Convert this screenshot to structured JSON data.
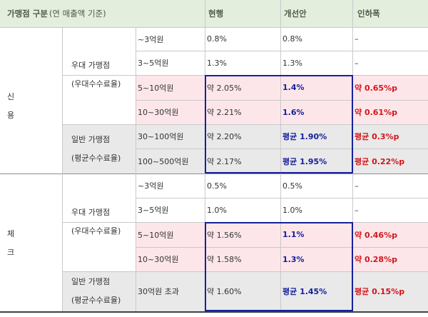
{
  "header": {
    "col_category_main": "가맹점 구분",
    "col_category_note": "(연 매출액 기준)",
    "col_current": "현행",
    "col_improved": "개선안",
    "col_reduction": "인하폭"
  },
  "credit": {
    "label_top": "신",
    "label_bottom": "용",
    "preferred_group": {
      "line1": "우대 가맹점",
      "line2": "(우대수수료율)"
    },
    "general_group": {
      "line1": "일반 가맹점",
      "line2": "(평균수수료율)"
    },
    "rows": [
      {
        "range": "~3억원",
        "current": "0.8%",
        "improved": "0.8%",
        "reduction": "–"
      },
      {
        "range": "3~5억원",
        "current": "1.3%",
        "improved": "1.3%",
        "reduction": "–"
      },
      {
        "range": "5~10억원",
        "current": "약 2.05%",
        "improved": "1.4%",
        "reduction": "약 0.65%p"
      },
      {
        "range": "10~30억원",
        "current": "약 2.21%",
        "improved": "1.6%",
        "reduction": "약 0.61%p"
      },
      {
        "range": "30~100억원",
        "current": "약 2.20%",
        "improved": "평균 1.90%",
        "reduction": "평균 0.3%p"
      },
      {
        "range": "100~500억원",
        "current": "약 2.17%",
        "improved": "평균 1.95%",
        "reduction": "평균 0.22%p"
      }
    ]
  },
  "check": {
    "label_top": "체",
    "label_bottom": "크",
    "preferred_group": {
      "line1": "우대 가맹점",
      "line2": "(우대수수료율)"
    },
    "general_group": {
      "line1": "일반 가맹점",
      "line2": "(평균수수료율)"
    },
    "rows": [
      {
        "range": "~3억원",
        "current": "0.5%",
        "improved": "0.5%",
        "reduction": "–"
      },
      {
        "range": "3~5억원",
        "current": "1.0%",
        "improved": "1.0%",
        "reduction": "–"
      },
      {
        "range": "5~10억원",
        "current": "약 1.56%",
        "improved": "1.1%",
        "reduction": "약 0.46%p"
      },
      {
        "range": "10~30억원",
        "current": "약 1.58%",
        "improved": "1.3%",
        "reduction": "약 0.28%p"
      },
      {
        "range": "30억원 초과",
        "current": "약 1.60%",
        "improved": "평균 1.45%",
        "reduction": "평균 0.15%p"
      }
    ]
  },
  "colors": {
    "header_bg": "#e3eedd",
    "highlight_pink": "#fde6ea",
    "highlight_gray": "#e9e9e9",
    "box_blue": "#17209c",
    "reduction_red": "#d3161b"
  }
}
